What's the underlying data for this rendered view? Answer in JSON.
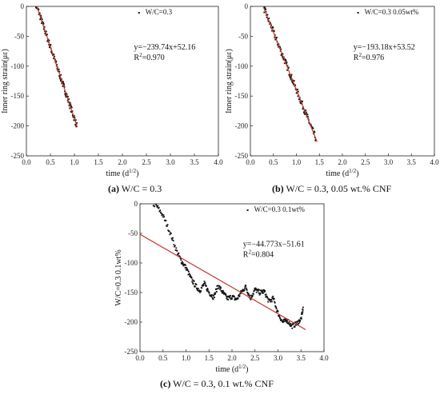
{
  "chart_data": [
    {
      "type": "scatter",
      "xlabel": "time (d^1/2)",
      "ylabel": "Inner ring strain(με)",
      "xlim": [
        0,
        4
      ],
      "ylim": [
        -250,
        0
      ],
      "xticks": [
        "0.0",
        "0.5",
        "1.0",
        "1.5",
        "2.0",
        "2.5",
        "3.0",
        "3.5",
        "4.0"
      ],
      "yticks": [
        "0",
        "-50",
        "-100",
        "-150",
        "-200",
        "-250"
      ],
      "legend": "W/C=0.3",
      "fit_equation": "y=−239.74x+52.16",
      "r2_text": "R",
      "r2_value": "=0.970",
      "fit": {
        "slope": -239.74,
        "intercept": 52.16,
        "x_range": [
          0.18,
          1.06
        ]
      },
      "data_x_range": [
        0.2,
        1.05
      ],
      "caption_id": "(a)",
      "caption_text": "W/C = 0.3",
      "point_color": "#111111",
      "fit_color": "#c0392b"
    },
    {
      "type": "scatter",
      "xlabel": "time (d^1/2)",
      "ylabel": "Inner ring strain(με)",
      "xlim": [
        0,
        4
      ],
      "ylim": [
        -250,
        0
      ],
      "xticks": [
        "0.0",
        "0.5",
        "1.0",
        "1.5",
        "2.0",
        "2.5",
        "3.0",
        "3.5",
        "4.0"
      ],
      "yticks": [
        "0",
        "-50",
        "-100",
        "-150",
        "-200",
        "-250"
      ],
      "legend": "W/C=0.3 0.05wt%",
      "fit_equation": "y=−193.18x+53.52",
      "r2_text": "R",
      "r2_value": "=0.976",
      "fit": {
        "slope": -193.18,
        "intercept": 53.52,
        "x_range": [
          0.25,
          1.45
        ]
      },
      "data_x_range": [
        0.3,
        1.42
      ],
      "caption_id": "(b)",
      "caption_text": "W/C = 0.3, 0.05 wt.% CNF",
      "point_color": "#111111",
      "fit_color": "#c0392b"
    },
    {
      "type": "scatter",
      "xlabel": "time (d^1/2)",
      "ylabel": "W/C=0.3 0.1wt%",
      "xlim": [
        0,
        4
      ],
      "ylim": [
        -250,
        0
      ],
      "xticks": [
        "0.0",
        "0.5",
        "1.0",
        "1.5",
        "2.0",
        "2.5",
        "3.0",
        "3.5",
        "4.0"
      ],
      "yticks": [
        "0",
        "-50",
        "-100",
        "-150",
        "-200",
        "-250"
      ],
      "legend": "W/C=0.3 0.1wt%",
      "fit_equation": "y=−44.773x−51.61",
      "r2_text": "R",
      "r2_value": "=0.804",
      "fit": {
        "slope": -44.773,
        "intercept": -51.61,
        "x_range": [
          0.0,
          3.6
        ]
      },
      "curve": [
        [
          0.25,
          0
        ],
        [
          0.35,
          -2
        ],
        [
          0.5,
          -20
        ],
        [
          0.65,
          -48
        ],
        [
          0.8,
          -80
        ],
        [
          0.9,
          -97
        ],
        [
          1.0,
          -108
        ],
        [
          1.1,
          -125
        ],
        [
          1.2,
          -138
        ],
        [
          1.3,
          -147
        ],
        [
          1.4,
          -135
        ],
        [
          1.5,
          -150
        ],
        [
          1.6,
          -158
        ],
        [
          1.7,
          -138
        ],
        [
          1.8,
          -150
        ],
        [
          1.9,
          -160
        ],
        [
          2.0,
          -157
        ],
        [
          2.1,
          -162
        ],
        [
          2.2,
          -150
        ],
        [
          2.3,
          -140
        ],
        [
          2.4,
          -160
        ],
        [
          2.5,
          -145
        ],
        [
          2.6,
          -150
        ],
        [
          2.7,
          -148
        ],
        [
          2.8,
          -165
        ],
        [
          2.9,
          -160
        ],
        [
          3.0,
          -185
        ],
        [
          3.1,
          -200
        ],
        [
          3.2,
          -197
        ],
        [
          3.3,
          -207
        ],
        [
          3.4,
          -203
        ],
        [
          3.5,
          -195
        ],
        [
          3.55,
          -175
        ]
      ],
      "caption_id": "(c)",
      "caption_text": "W/C = 0.3, 0.1 wt.% CNF",
      "point_color": "#111111",
      "fit_color": "#c0392b"
    }
  ]
}
